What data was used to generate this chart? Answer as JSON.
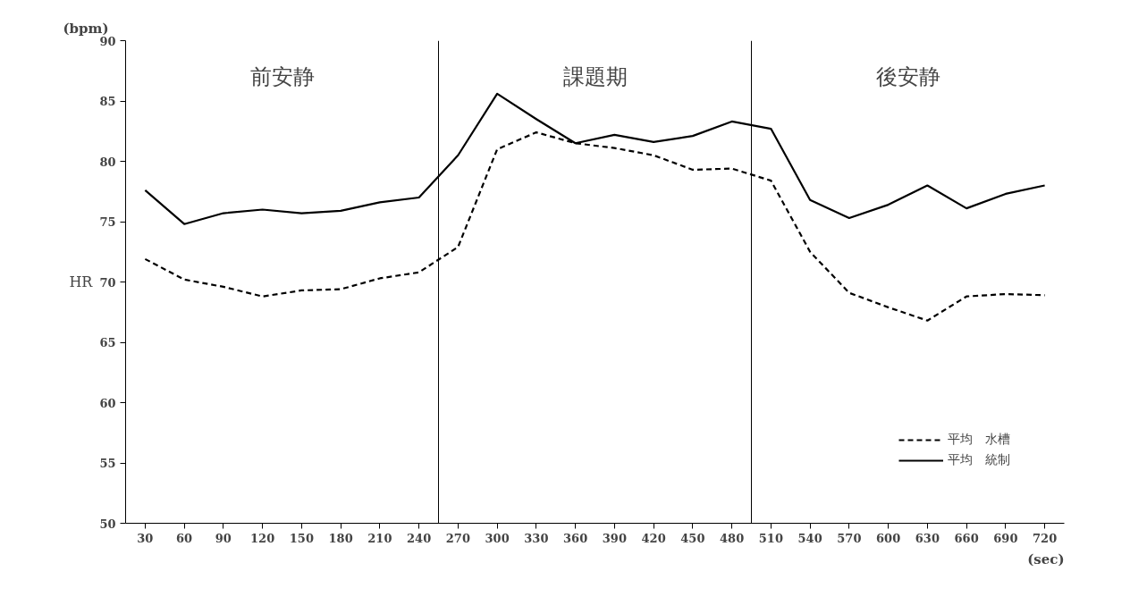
{
  "chart_data": {
    "type": "line",
    "x": [
      30,
      60,
      90,
      120,
      150,
      180,
      210,
      240,
      270,
      300,
      330,
      360,
      390,
      420,
      450,
      480,
      510,
      540,
      570,
      600,
      630,
      660,
      690,
      720
    ],
    "series": [
      {
        "name": "平均　水槽",
        "color": "#000000",
        "line_style": "dashed",
        "values": [
          71.9,
          70.2,
          69.6,
          68.8,
          69.3,
          69.4,
          70.3,
          70.8,
          72.9,
          81.0,
          82.4,
          81.5,
          81.1,
          80.5,
          79.3,
          79.4,
          78.4,
          72.5,
          69.1,
          67.9,
          66.8,
          68.8,
          69.0,
          68.9
        ]
      },
      {
        "name": "平均　統制",
        "color": "#000000",
        "line_style": "solid",
        "values": [
          77.6,
          74.8,
          75.7,
          76.0,
          75.7,
          75.9,
          76.6,
          77.0,
          80.5,
          85.6,
          83.5,
          81.5,
          82.2,
          81.6,
          82.1,
          83.3,
          82.7,
          76.8,
          75.3,
          76.4,
          78.0,
          76.1,
          77.3,
          78.0
        ]
      }
    ],
    "ylabel": "HR",
    "annotations": [
      "(bpm)",
      "(sec)",
      "前安静",
      "課題期",
      "後安静"
    ],
    "xlim": [
      15,
      735
    ],
    "xticks": [
      30,
      60,
      90,
      120,
      150,
      180,
      210,
      240,
      270,
      300,
      330,
      360,
      390,
      420,
      450,
      480,
      510,
      540,
      570,
      600,
      630,
      660,
      690,
      720
    ],
    "ylim": [
      50,
      90
    ],
    "yticks": [
      50,
      55,
      60,
      65,
      70,
      75,
      80,
      85,
      90
    ],
    "ref_lines": [
      {
        "axis": "x",
        "value": 255,
        "color": "#000000"
      },
      {
        "axis": "x",
        "value": 495,
        "color": "#000000"
      }
    ],
    "legend": "bottom right",
    "grid": false
  }
}
